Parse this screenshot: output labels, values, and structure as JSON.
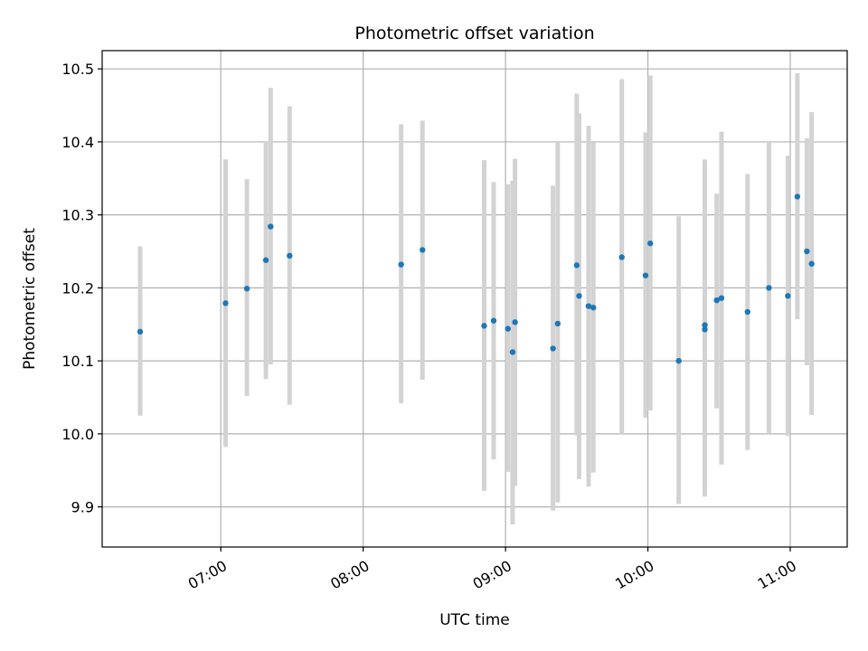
{
  "chart_data": {
    "type": "scatter",
    "title": "Photometric offset variation",
    "xlabel": "UTC time",
    "ylabel": "Photometric offset",
    "grid": true,
    "xlim": [
      "06:10",
      "11:24"
    ],
    "ylim": [
      9.845,
      10.525
    ],
    "x_ticks": [
      "07:00",
      "08:00",
      "09:00",
      "10:00",
      "11:00"
    ],
    "y_ticks": [
      9.9,
      10.0,
      10.1,
      10.2,
      10.3,
      10.4,
      10.5
    ],
    "y_tick_labels": [
      "9.9",
      "10.0",
      "10.1",
      "10.2",
      "10.3",
      "10.4",
      "10.5"
    ],
    "point_color": "#1f77b4",
    "errorbar_color": "#d3d3d3",
    "points": [
      {
        "x": "06:26",
        "y": 10.14,
        "ylo": 10.025,
        "yhi": 10.257
      },
      {
        "x": "07:02",
        "y": 10.179,
        "ylo": 9.982,
        "yhi": 10.376
      },
      {
        "x": "07:11",
        "y": 10.199,
        "ylo": 10.052,
        "yhi": 10.349
      },
      {
        "x": "07:19",
        "y": 10.238,
        "ylo": 10.075,
        "yhi": 10.4
      },
      {
        "x": "07:21",
        "y": 10.284,
        "ylo": 10.095,
        "yhi": 10.474
      },
      {
        "x": "07:29",
        "y": 10.244,
        "ylo": 10.04,
        "yhi": 10.449
      },
      {
        "x": "08:16",
        "y": 10.232,
        "ylo": 10.042,
        "yhi": 10.424
      },
      {
        "x": "08:25",
        "y": 10.252,
        "ylo": 10.074,
        "yhi": 10.429
      },
      {
        "x": "08:51",
        "y": 10.148,
        "ylo": 9.922,
        "yhi": 10.375
      },
      {
        "x": "08:55",
        "y": 10.155,
        "ylo": 9.965,
        "yhi": 10.345
      },
      {
        "x": "09:01",
        "y": 10.144,
        "ylo": 9.948,
        "yhi": 10.342
      },
      {
        "x": "09:03",
        "y": 10.112,
        "ylo": 9.876,
        "yhi": 10.347
      },
      {
        "x": "09:04",
        "y": 10.153,
        "ylo": 9.929,
        "yhi": 10.377
      },
      {
        "x": "09:20",
        "y": 10.117,
        "ylo": 9.895,
        "yhi": 10.34
      },
      {
        "x": "09:22",
        "y": 10.151,
        "ylo": 9.906,
        "yhi": 10.4
      },
      {
        "x": "09:30",
        "y": 10.231,
        "ylo": 9.998,
        "yhi": 10.466
      },
      {
        "x": "09:31",
        "y": 10.189,
        "ylo": 9.938,
        "yhi": 10.439
      },
      {
        "x": "09:35",
        "y": 10.175,
        "ylo": 9.928,
        "yhi": 10.422
      },
      {
        "x": "09:37",
        "y": 10.173,
        "ylo": 9.947,
        "yhi": 10.399
      },
      {
        "x": "09:49",
        "y": 10.242,
        "ylo": 10.0,
        "yhi": 10.486
      },
      {
        "x": "09:59",
        "y": 10.217,
        "ylo": 10.022,
        "yhi": 10.413
      },
      {
        "x": "10:01",
        "y": 10.261,
        "ylo": 10.032,
        "yhi": 10.491
      },
      {
        "x": "10:13",
        "y": 10.1,
        "ylo": 9.904,
        "yhi": 10.298
      },
      {
        "x": "10:24",
        "y": 10.149,
        "ylo": 9.924,
        "yhi": 10.376
      },
      {
        "x": "10:24",
        "y": 10.143,
        "ylo": 9.914,
        "yhi": 10.371
      },
      {
        "x": "10:29",
        "y": 10.183,
        "ylo": 10.035,
        "yhi": 10.329
      },
      {
        "x": "10:31",
        "y": 10.186,
        "ylo": 9.958,
        "yhi": 10.414
      },
      {
        "x": "10:42",
        "y": 10.167,
        "ylo": 9.978,
        "yhi": 10.356
      },
      {
        "x": "10:51",
        "y": 10.2,
        "ylo": 10.0,
        "yhi": 10.4
      },
      {
        "x": "10:59",
        "y": 10.189,
        "ylo": 9.997,
        "yhi": 10.381
      },
      {
        "x": "11:03",
        "y": 10.325,
        "ylo": 10.157,
        "yhi": 10.494
      },
      {
        "x": "11:07",
        "y": 10.25,
        "ylo": 10.094,
        "yhi": 10.405
      },
      {
        "x": "11:09",
        "y": 10.233,
        "ylo": 10.026,
        "yhi": 10.441
      }
    ]
  }
}
